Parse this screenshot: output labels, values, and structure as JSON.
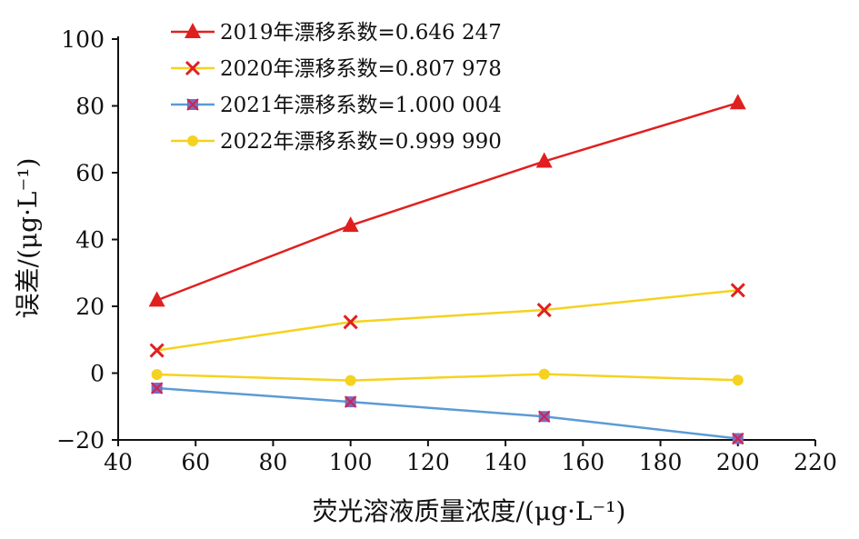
{
  "chart_data": {
    "type": "line",
    "title": "",
    "xlabel": "荧光溶液质量浓度/(μg·L⁻¹)",
    "ylabel": "误差/(μg·L⁻¹)",
    "xlim": [
      40,
      220
    ],
    "ylim": [
      -20,
      100
    ],
    "x_ticks": [
      "40",
      "60",
      "80",
      "100",
      "120",
      "140",
      "160",
      "180",
      "200",
      "220"
    ],
    "y_ticks": [
      "100",
      "80",
      "60",
      "40",
      "20",
      "0",
      "−20"
    ],
    "x": [
      50,
      100,
      150,
      200
    ],
    "grid": false,
    "legend_position": "top-left",
    "series": [
      {
        "name": "2019年漂移系数=0.646 247",
        "color": "#e0201f",
        "marker": "triangle",
        "values": [
          21.8,
          44.2,
          63.4,
          80.9
        ]
      },
      {
        "name": "2020年漂移系数=0.807 978",
        "color": "#f5d21f",
        "marker": "x",
        "values": [
          6.8,
          15.3,
          18.9,
          24.8
        ]
      },
      {
        "name": "2021年漂移系数=1.000 004",
        "color": "#5b9bd5",
        "marker": "x-square",
        "values": [
          -4.5,
          -8.6,
          -13.0,
          -19.6
        ]
      },
      {
        "name": "2022年漂移系数=0.999 990",
        "color": "#f5d21f",
        "marker": "circle",
        "values": [
          -0.4,
          -2.2,
          -0.3,
          -2.1
        ]
      }
    ]
  }
}
